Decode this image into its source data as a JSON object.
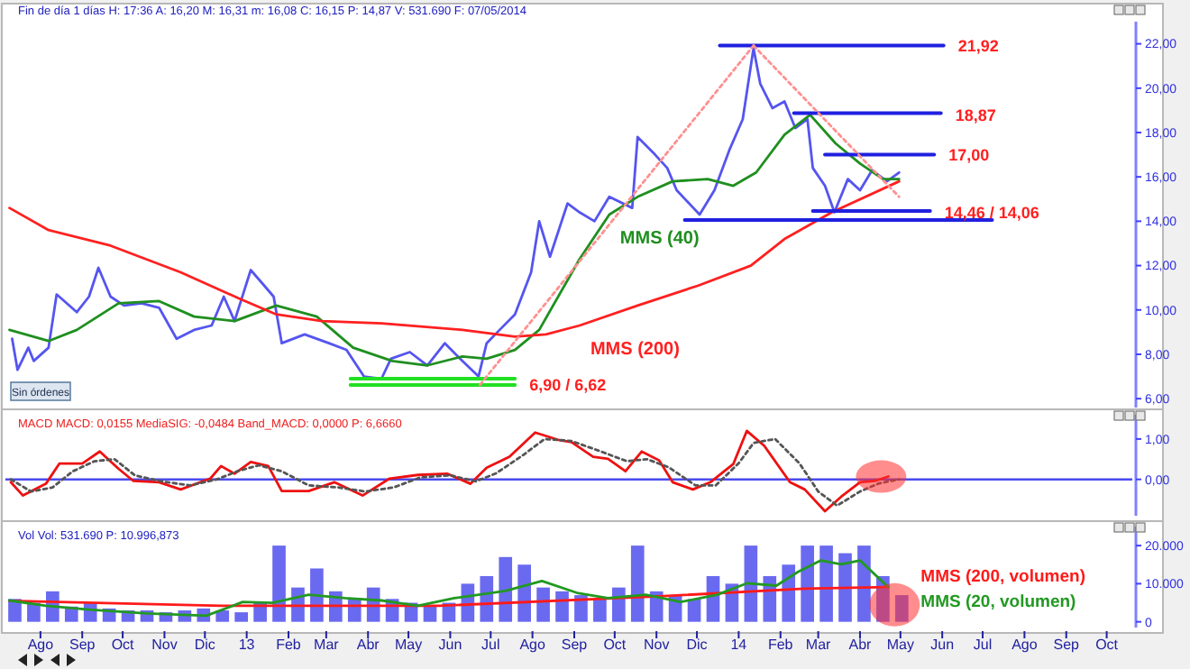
{
  "chart_data": [
    {
      "type": "line",
      "title": "Fin de día 1 días H: 17:36 A: 16,20 M: 16,31 m: 16,08 C: 16,15 P: 14,87 V: 531.690 F: 07/05/2014",
      "annotations": [
        "Sin órdenes",
        {
          "text": "21,92",
          "x": "2014-06-02",
          "y": 21.92
        },
        {
          "text": "18,87",
          "x": "2014-05-31",
          "y": 18.87
        },
        {
          "text": "17,00",
          "x": "2014-05-26",
          "y": 17.0
        },
        {
          "text": "14,46 / 14,06",
          "x": "2014-05-23",
          "y": 14.46
        },
        {
          "text": "6,90 / 6,62",
          "x": "2013-07-19",
          "y": 6.62
        }
      ],
      "xlim": [
        "2012-07-06",
        "2014-10-20"
      ],
      "ylim": [
        5.6,
        23
      ],
      "yticks": [
        {
          "value": 6,
          "label": "6,00"
        },
        {
          "value": 8,
          "label": "8,00"
        },
        {
          "value": 10,
          "label": "10,00"
        },
        {
          "value": 12,
          "label": "12,00"
        },
        {
          "value": 14,
          "label": "14,00"
        },
        {
          "value": 16,
          "label": "16,00"
        },
        {
          "value": 18,
          "label": "18,00"
        },
        {
          "value": 20,
          "label": "20,00"
        },
        {
          "value": 22,
          "label": "22,00"
        }
      ],
      "tick_labels": "y",
      "series": [
        {
          "color": "#5555f0",
          "x": [
            "2012-07-11",
            "2012-07-15",
            "2012-07-23",
            "2012-07-27",
            "2012-08-07",
            "2012-08-13",
            "2012-08-28",
            "2012-09-06",
            "2012-09-13",
            "2012-09-22",
            "2012-10-02",
            "2012-10-15",
            "2012-10-28",
            "2012-11-10",
            "2012-11-23",
            "2012-12-06",
            "2012-12-15",
            "2012-12-23",
            "2013-01-04",
            "2013-01-14",
            "2013-01-21",
            "2013-01-27",
            "2013-02-13",
            "2013-03-03",
            "2013-03-16",
            "2013-03-29",
            "2013-04-11",
            "2013-04-18",
            "2013-05-02",
            "2013-05-15",
            "2013-05-28",
            "2013-06-10",
            "2013-06-22",
            "2013-06-28",
            "2013-07-06",
            "2013-07-19",
            "2013-07-31",
            "2013-08-06",
            "2013-08-14",
            "2013-08-27",
            "2013-09-05",
            "2013-09-16",
            "2013-09-27",
            "2013-10-14",
            "2013-10-18",
            "2013-10-31",
            "2013-11-09",
            "2013-11-16",
            "2013-12-03",
            "2013-12-14",
            "2013-12-25",
            "2014-01-04",
            "2014-01-12",
            "2014-01-17",
            "2014-01-26",
            "2014-02-04",
            "2014-02-12",
            "2014-02-21",
            "2014-02-25",
            "2014-03-06",
            "2014-03-13",
            "2014-03-23",
            "2014-04-01",
            "2014-04-10",
            "2014-04-21",
            "2014-04-30"
          ],
          "values": [
            8.7,
            7.3,
            8.3,
            7.7,
            8.3,
            10.7,
            9.9,
            10.6,
            11.9,
            10.6,
            10.2,
            10.3,
            10.1,
            8.7,
            9.1,
            9.3,
            10.6,
            9.5,
            11.8,
            11.1,
            10.6,
            8.5,
            8.9,
            8.5,
            8.2,
            7.0,
            6.9,
            7.8,
            8.1,
            7.5,
            8.5,
            7.7,
            7.0,
            8.5,
            9.0,
            9.8,
            11.7,
            14.0,
            12.4,
            14.8,
            14.4,
            14.0,
            15.1,
            14.6,
            17.8,
            17.0,
            16.4,
            15.4,
            14.3,
            15.4,
            17.2,
            18.6,
            21.8,
            20.2,
            19.1,
            19.4,
            18.2,
            18.6,
            16.4,
            15.6,
            14.4,
            15.9,
            15.4,
            16.3,
            15.8,
            16.2
          ]
        },
        {
          "name": "MMS (40)",
          "color": "#1f8f1f",
          "x": [
            "2012-07-09",
            "2012-08-07",
            "2012-08-28",
            "2012-09-28",
            "2012-10-28",
            "2012-11-23",
            "2012-12-23",
            "2013-01-23",
            "2013-02-22",
            "2013-03-21",
            "2013-04-19",
            "2013-05-15",
            "2013-06-10",
            "2013-06-28",
            "2013-07-19",
            "2013-08-06",
            "2013-09-05",
            "2013-09-27",
            "2013-10-18",
            "2013-11-13",
            "2013-12-09",
            "2013-12-28",
            "2014-01-14",
            "2014-02-04",
            "2014-02-23",
            "2014-03-14",
            "2014-04-01",
            "2014-04-18",
            "2014-04-30"
          ],
          "values": [
            9.1,
            8.6,
            9.1,
            10.3,
            10.4,
            9.7,
            9.5,
            10.2,
            9.7,
            8.3,
            7.7,
            7.5,
            7.9,
            7.8,
            8.2,
            9.1,
            12.3,
            14.3,
            15.1,
            15.8,
            15.9,
            15.6,
            16.2,
            17.9,
            18.8,
            17.5,
            16.6,
            15.9,
            15.9
          ]
        },
        {
          "name": "MMS (200)",
          "color": "#ff2020",
          "x": [
            "2012-07-09",
            "2012-08-07",
            "2012-09-22",
            "2012-11-13",
            "2012-12-27",
            "2013-01-23",
            "2013-02-26",
            "2013-04-11",
            "2013-06-10",
            "2013-07-19",
            "2013-08-11",
            "2013-09-05",
            "2013-10-18",
            "2013-12-02",
            "2014-01-10",
            "2014-02-04",
            "2014-03-11",
            "2014-04-30"
          ],
          "values": [
            14.6,
            13.6,
            12.9,
            11.7,
            10.5,
            9.8,
            9.5,
            9.4,
            9.1,
            8.8,
            8.9,
            9.3,
            10.2,
            11.1,
            12.0,
            13.2,
            14.4,
            15.8
          ]
        },
        {
          "color": "#2020e0",
          "x": [
            "2013-12-18",
            "2014-06-02"
          ],
          "values": [
            21.92,
            21.92
          ]
        },
        {
          "color": "#2020e0",
          "x": [
            "2014-02-11",
            "2014-05-31"
          ],
          "values": [
            18.87,
            18.87
          ]
        },
        {
          "color": "#2020e0",
          "x": [
            "2014-03-06",
            "2014-05-26"
          ],
          "values": [
            17.0,
            17.0
          ]
        },
        {
          "color": "#2020e0",
          "x": [
            "2014-02-25",
            "2014-05-23"
          ],
          "values": [
            14.46,
            14.46
          ]
        },
        {
          "color": "#2020e0",
          "x": [
            "2013-11-22",
            "2014-07-08"
          ],
          "values": [
            14.06,
            14.06
          ]
        },
        {
          "color": "#22e022",
          "x": [
            "2013-03-19",
            "2013-07-19"
          ],
          "values": [
            6.9,
            6.9
          ]
        },
        {
          "color": "#22e022",
          "x": [
            "2013-03-19",
            "2013-07-19"
          ],
          "values": [
            6.62,
            6.62
          ]
        },
        {
          "color": "#ff9090",
          "line_style": "dotted",
          "x": [
            "2013-06-23",
            "2014-01-12"
          ],
          "values": [
            6.62,
            21.92
          ]
        },
        {
          "color": "#ff9090",
          "line_style": "dotted",
          "x": [
            "2014-01-12",
            "2014-04-30"
          ],
          "values": [
            21.92,
            15.1
          ]
        }
      ]
    },
    {
      "type": "line",
      "title": "MACD MACD: 0,0155 MediaSIG: -0,0484 Band_MACD: 0,0000 P: 6,6660",
      "xlim": [
        "2012-07-06",
        "2014-10-20"
      ],
      "ylim": [
        -0.9,
        1.6
      ],
      "yticks": [
        {
          "value": 0,
          "label": "0,00"
        },
        {
          "value": 1,
          "label": "1,00"
        }
      ],
      "tick_labels": "y",
      "ref_lines": [
        {
          "axis": "y",
          "value": 0,
          "color": "#4a4af0"
        }
      ],
      "series": [
        {
          "color": "#ee1111",
          "x": [
            "2012-07-10",
            "2012-07-19",
            "2012-08-05",
            "2012-08-15",
            "2012-09-01",
            "2012-09-14",
            "2012-09-28",
            "2012-10-09",
            "2012-10-28",
            "2012-11-13",
            "2012-12-05",
            "2012-12-13",
            "2012-12-23",
            "2013-01-04",
            "2013-01-17",
            "2013-01-27",
            "2013-02-16",
            "2013-03-07",
            "2013-03-28",
            "2013-04-17",
            "2013-05-08",
            "2013-05-30",
            "2013-06-16",
            "2013-06-28",
            "2013-07-15",
            "2013-08-03",
            "2013-08-20",
            "2013-08-30",
            "2013-09-15",
            "2013-09-26",
            "2013-10-09",
            "2013-10-21",
            "2013-11-03",
            "2013-11-13",
            "2013-11-28",
            "2013-12-11",
            "2013-12-28",
            "2014-01-07",
            "2014-01-20",
            "2014-02-08",
            "2014-02-19",
            "2014-03-06",
            "2014-03-18",
            "2014-04-01",
            "2014-04-12",
            "2014-04-22"
          ],
          "values": [
            -0.07,
            -0.4,
            -0.11,
            0.39,
            0.39,
            0.69,
            0.26,
            -0.04,
            -0.07,
            -0.25,
            0.02,
            0.33,
            0.14,
            0.43,
            0.33,
            -0.29,
            -0.29,
            -0.07,
            -0.4,
            0.02,
            0.11,
            0.14,
            -0.11,
            0.29,
            0.56,
            1.16,
            0.98,
            0.92,
            0.56,
            0.51,
            0.2,
            0.69,
            0.47,
            -0.07,
            -0.25,
            -0.07,
            0.38,
            1.2,
            0.83,
            -0.07,
            -0.25,
            -0.79,
            -0.43,
            -0.07,
            -0.04,
            0.07
          ]
        },
        {
          "color": "#555555",
          "line_style": "dotted",
          "x": [
            "2012-07-10",
            "2012-07-25",
            "2012-08-10",
            "2012-08-25",
            "2012-09-10",
            "2012-09-25",
            "2012-10-10",
            "2012-10-30",
            "2012-11-20",
            "2012-12-10",
            "2012-12-25",
            "2013-01-10",
            "2013-01-27",
            "2013-02-16",
            "2013-03-10",
            "2013-03-30",
            "2013-04-20",
            "2013-05-10",
            "2013-06-01",
            "2013-06-20",
            "2013-07-05",
            "2013-07-25",
            "2013-08-10",
            "2013-08-30",
            "2013-09-20",
            "2013-10-10",
            "2013-10-25",
            "2013-11-10",
            "2013-11-30",
            "2013-12-15",
            "2014-01-01",
            "2014-01-12",
            "2014-01-28",
            "2014-02-15",
            "2014-03-01",
            "2014-03-15",
            "2014-04-01",
            "2014-04-15",
            "2014-04-30"
          ],
          "values": [
            0.0,
            -0.3,
            -0.2,
            0.2,
            0.45,
            0.5,
            0.1,
            -0.05,
            -0.15,
            0.0,
            0.2,
            0.35,
            0.2,
            -0.15,
            -0.2,
            -0.3,
            -0.2,
            0.05,
            0.1,
            -0.05,
            0.15,
            0.6,
            1.0,
            0.95,
            0.7,
            0.45,
            0.5,
            0.3,
            -0.15,
            -0.15,
            0.4,
            0.9,
            1.0,
            0.4,
            -0.3,
            -0.65,
            -0.3,
            -0.1,
            0.0
          ]
        }
      ]
    },
    {
      "type": "bar",
      "title": "Vol Vol: 531.690 P: 10.996,873",
      "xlim": [
        "2012-07-06",
        "2014-10-20"
      ],
      "ylim": [
        -1500,
        25000
      ],
      "yticks": [
        {
          "value": 0,
          "label": "0"
        },
        {
          "value": 10000,
          "label": "10.000"
        },
        {
          "value": 20000,
          "label": "20.000"
        }
      ],
      "xticks": [
        {
          "value": "2012-08-01",
          "label": "Ago"
        },
        {
          "value": "2012-09-01",
          "label": "Sep"
        },
        {
          "value": "2012-10-01",
          "label": "Oct"
        },
        {
          "value": "2012-11-01",
          "label": "Nov"
        },
        {
          "value": "2012-12-01",
          "label": "Dic"
        },
        {
          "value": "2013-01-01",
          "label": "13"
        },
        {
          "value": "2013-02-01",
          "label": "Feb"
        },
        {
          "value": "2013-03-01",
          "label": "Mar"
        },
        {
          "value": "2013-04-01",
          "label": "Abr"
        },
        {
          "value": "2013-05-01",
          "label": "May"
        },
        {
          "value": "2013-06-01",
          "label": "Jun"
        },
        {
          "value": "2013-07-01",
          "label": "Jul"
        },
        {
          "value": "2013-08-01",
          "label": "Ago"
        },
        {
          "value": "2013-09-01",
          "label": "Sep"
        },
        {
          "value": "2013-10-01",
          "label": "Oct"
        },
        {
          "value": "2013-11-01",
          "label": "Nov"
        },
        {
          "value": "2013-12-01",
          "label": "Dic"
        },
        {
          "value": "2014-01-01",
          "label": "14"
        },
        {
          "value": "2014-02-01",
          "label": "Feb"
        },
        {
          "value": "2014-03-01",
          "label": "Mar"
        },
        {
          "value": "2014-04-01",
          "label": "Abr"
        },
        {
          "value": "2014-05-01",
          "label": "May"
        },
        {
          "value": "2014-06-01",
          "label": "Jun"
        },
        {
          "value": "2014-07-01",
          "label": "Jul"
        },
        {
          "value": "2014-08-01",
          "label": "Ago"
        },
        {
          "value": "2014-09-01",
          "label": "Sep"
        },
        {
          "value": "2014-10-01",
          "label": "Oct"
        }
      ],
      "series": [
        {
          "color": "#6a6af0",
          "x": [
            "2012-07-13",
            "2012-07-27",
            "2012-08-10",
            "2012-08-24",
            "2012-09-07",
            "2012-09-21",
            "2012-10-05",
            "2012-10-19",
            "2012-11-02",
            "2012-11-16",
            "2012-11-30",
            "2012-12-14",
            "2012-12-28",
            "2013-01-11",
            "2013-01-25",
            "2013-02-08",
            "2013-02-22",
            "2013-03-08",
            "2013-03-22",
            "2013-04-05",
            "2013-04-19",
            "2013-05-03",
            "2013-05-17",
            "2013-05-31",
            "2013-06-14",
            "2013-06-28",
            "2013-07-12",
            "2013-07-26",
            "2013-08-09",
            "2013-08-23",
            "2013-09-06",
            "2013-09-20",
            "2013-10-04",
            "2013-10-18",
            "2013-11-01",
            "2013-11-15",
            "2013-11-29",
            "2013-12-13",
            "2013-12-27",
            "2014-01-10",
            "2014-01-24",
            "2014-02-07",
            "2014-02-21",
            "2014-03-07",
            "2014-03-21",
            "2014-04-04",
            "2014-04-18",
            "2014-05-02"
          ],
          "values": [
            6000,
            5000,
            8000,
            4000,
            5000,
            3500,
            3000,
            3000,
            2500,
            3000,
            3500,
            3000,
            2500,
            5000,
            20000,
            9000,
            14000,
            8000,
            6000,
            9000,
            6000,
            5000,
            4000,
            5000,
            10000,
            12000,
            17000,
            15000,
            9000,
            8000,
            7000,
            6000,
            9000,
            20000,
            8000,
            7000,
            6000,
            12000,
            10000,
            20000,
            12000,
            15000,
            20000,
            20000,
            18000,
            20000,
            12000,
            7000
          ]
        },
        {
          "type": "line",
          "name": "MMS (200, volumen)",
          "color": "#ff1a1a",
          "x": [
            "2012-07-09",
            "2012-12-13",
            "2013-05-24",
            "2013-11-03",
            "2014-02-19",
            "2014-04-22"
          ],
          "values": [
            5500,
            4200,
            4200,
            6700,
            8700,
            9100
          ]
        },
        {
          "type": "line",
          "name": "MMS (20, volumen)",
          "color": "#229922",
          "x": [
            "2012-07-09",
            "2012-08-05",
            "2012-09-06",
            "2012-10-19",
            "2012-12-02",
            "2012-12-29",
            "2013-01-20",
            "2013-02-16",
            "2013-03-15",
            "2013-04-11",
            "2013-05-08",
            "2013-06-04",
            "2013-07-12",
            "2013-08-08",
            "2013-09-04",
            "2013-09-26",
            "2013-10-24",
            "2013-11-19",
            "2013-12-16",
            "2014-01-07",
            "2014-01-29",
            "2014-02-14",
            "2014-03-03",
            "2014-03-18",
            "2014-04-01",
            "2014-04-22"
          ],
          "values": [
            5600,
            4200,
            3200,
            2200,
            1600,
            5200,
            5000,
            7100,
            6200,
            5600,
            4200,
            6200,
            8100,
            10700,
            7500,
            6200,
            7100,
            5200,
            7100,
            10100,
            9500,
            13100,
            16100,
            15100,
            16100,
            9100
          ]
        }
      ]
    }
  ]
}
